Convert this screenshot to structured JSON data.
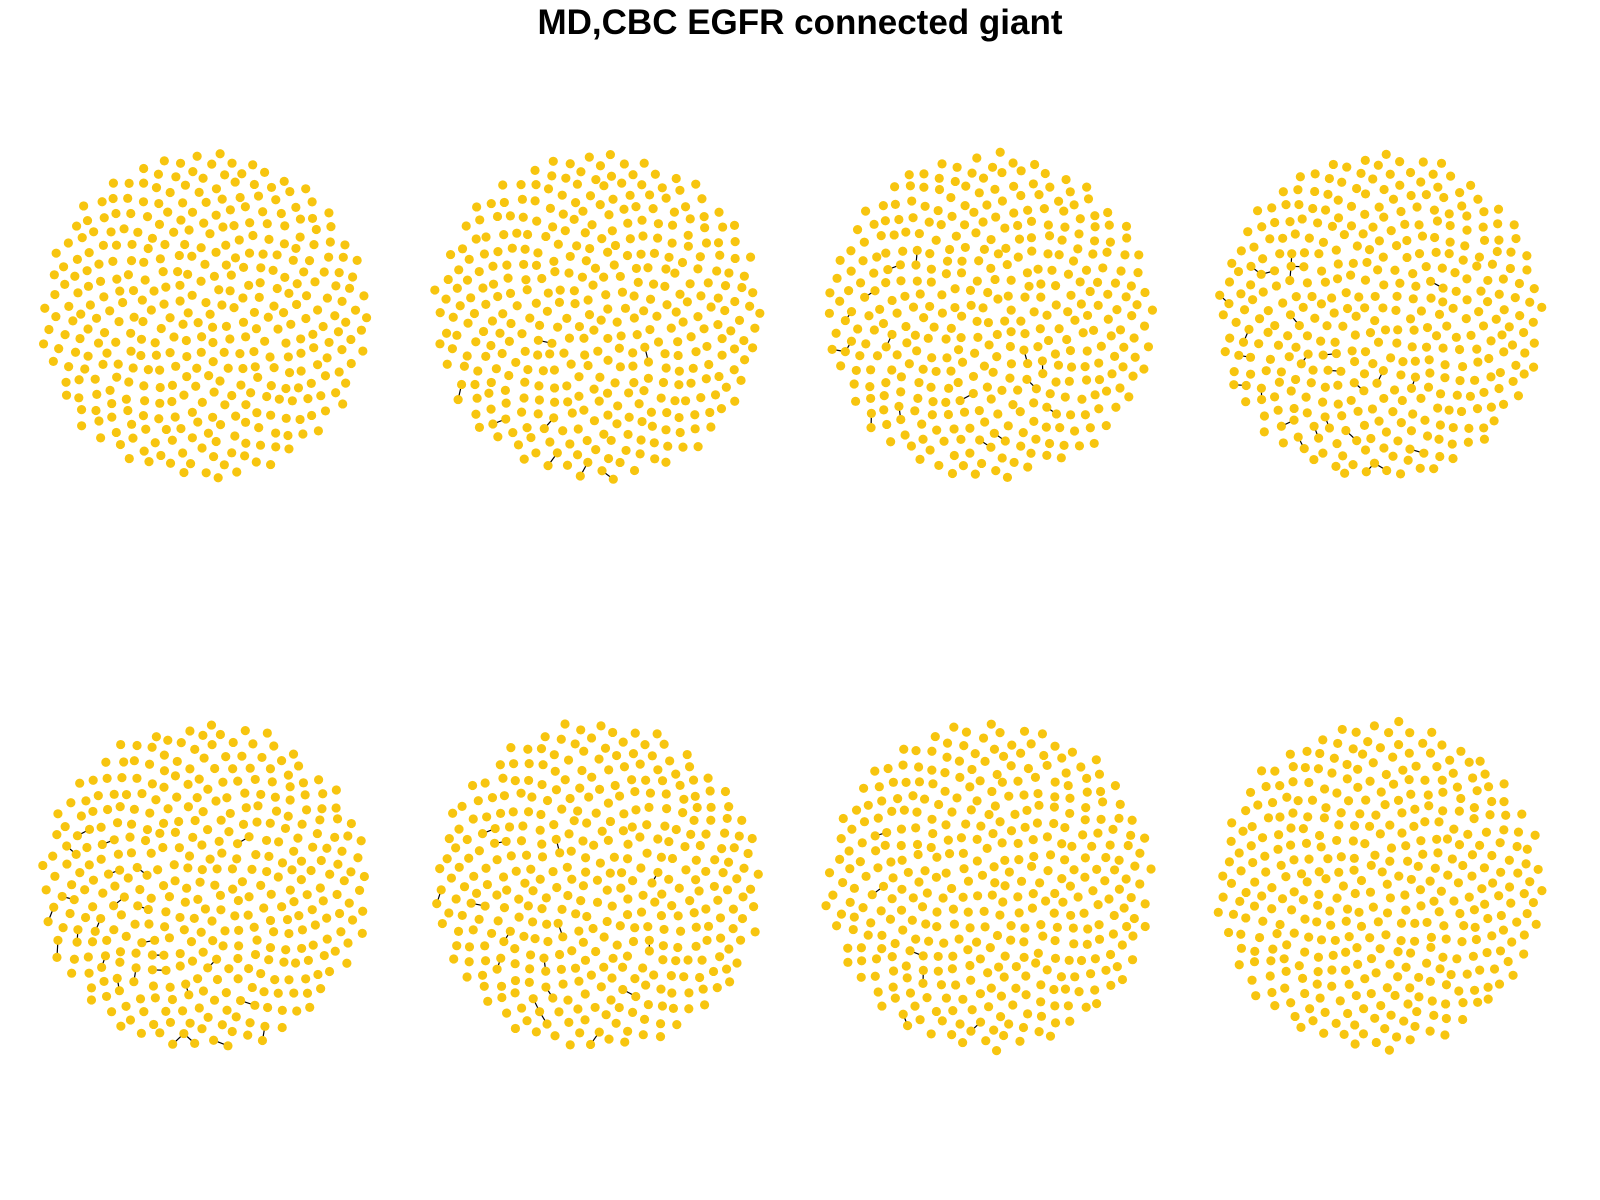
{
  "figure": {
    "title": "MD,CBC EGFR connected giant"
  },
  "colors": {
    "node": "#F7C50F",
    "edge": "#000000",
    "background": "#FFFFFF"
  },
  "panels": [
    {
      "id": "panel-1",
      "row": 1,
      "col": 1,
      "nodes": 380,
      "visible_bonds": 0
    },
    {
      "id": "panel-2",
      "row": 1,
      "col": 2,
      "nodes": 380,
      "visible_bonds": 8
    },
    {
      "id": "panel-3",
      "row": 1,
      "col": 3,
      "nodes": 380,
      "visible_bonds": 16
    },
    {
      "id": "panel-4",
      "row": 1,
      "col": 4,
      "nodes": 380,
      "visible_bonds": 26
    },
    {
      "id": "panel-5",
      "row": 2,
      "col": 1,
      "nodes": 380,
      "visible_bonds": 26
    },
    {
      "id": "panel-6",
      "row": 2,
      "col": 2,
      "nodes": 380,
      "visible_bonds": 16
    },
    {
      "id": "panel-7",
      "row": 2,
      "col": 3,
      "nodes": 380,
      "visible_bonds": 6
    },
    {
      "id": "panel-8",
      "row": 2,
      "col": 4,
      "nodes": 380,
      "visible_bonds": 0
    }
  ]
}
